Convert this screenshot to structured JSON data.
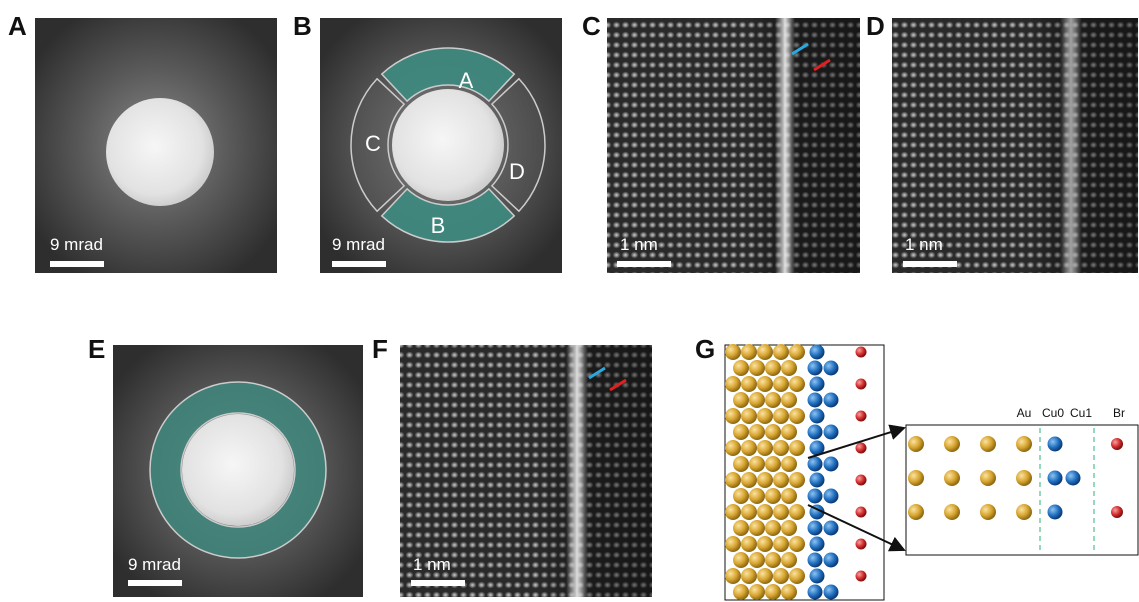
{
  "panels": [
    {
      "label": "A",
      "scale_bar": "9 mrad"
    },
    {
      "label": "B",
      "scale_bar": "9 mrad",
      "segments": [
        "A",
        "B",
        "C",
        "D"
      ]
    },
    {
      "label": "C",
      "scale_bar": "1 nm"
    },
    {
      "label": "D",
      "scale_bar": "1 nm"
    },
    {
      "label": "E",
      "scale_bar": "9 mrad"
    },
    {
      "label": "F",
      "scale_bar": "1 nm"
    },
    {
      "label": "G",
      "species": [
        "Au",
        "Cu0",
        "Cu1",
        "Br"
      ]
    }
  ]
}
